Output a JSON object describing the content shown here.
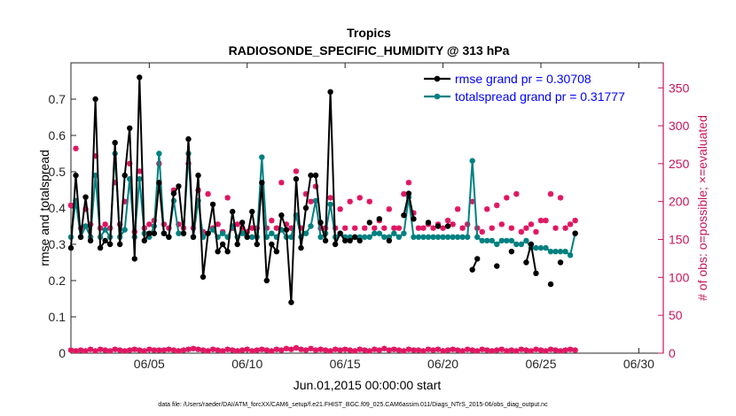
{
  "chart_data": {
    "type": "line",
    "title": "Tropics",
    "subtitle": "RADIOSONDE_SPECIFIC_HUMIDITY @ 313 hPa",
    "xlabel": "Jun.01,2015 00:00:00 start",
    "ylabel": "rmse and totalspread",
    "y2label": "# of obs: o=possible; ×=evaluated",
    "footnote": "data file: /Users/raeder/DAI/ATM_forcXX/CAM6_setup/f.e21.FHIST_BGC.f09_025.CAM6assim.011/Diags_NTrS_2015-06/obs_diag_output.nc",
    "xlim": [
      1,
      31.25
    ],
    "ylim": [
      0,
      0.8
    ],
    "y2lim": [
      0,
      383
    ],
    "x_ticks": [
      5,
      10,
      15,
      20,
      25,
      30
    ],
    "x_tick_labels": [
      "06/05",
      "06/10",
      "06/15",
      "06/20",
      "06/25",
      "06/30"
    ],
    "y_ticks": [
      "0",
      "0.1",
      "0.2",
      "0.3",
      "0.4",
      "0.5",
      "0.6",
      "0.7"
    ],
    "y2_ticks": [
      "0",
      "50",
      "100",
      "150",
      "200",
      "250",
      "300",
      "350"
    ],
    "x_step": 0.25,
    "colors": {
      "rmse": "#000000",
      "spread": "#008080",
      "obs": "#e0115f",
      "legend_text": "#0000ff",
      "right_axis": "#c8155a"
    },
    "series": [
      {
        "name": "rmse grand pr = 0.30708",
        "x_start": 1,
        "values": [
          0.29,
          0.49,
          0.32,
          0.43,
          0.31,
          0.7,
          0.29,
          0.31,
          0.3,
          0.58,
          0.3,
          0.49,
          0.62,
          0.26,
          0.76,
          0.31,
          0.33,
          0.33,
          0.47,
          0.33,
          0.32,
          0.44,
          0.46,
          0.33,
          0.59,
          0.32,
          0.49,
          0.21,
          0.33,
          0.41,
          0.28,
          0.3,
          0.28,
          0.39,
          0.3,
          0.36,
          0.32,
          0.39,
          0.3,
          0.47,
          0.2,
          0.3,
          0.28,
          0.38,
          0.34,
          0.14,
          0.48,
          0.29,
          0.4,
          0.49,
          0.49,
          0.36,
          0.31,
          0.72,
          0.3,
          0.33,
          0.31,
          0.31,
          0.32,
          0.31,
          null,
          0.36,
          null,
          0.37,
          null,
          0.31,
          null,
          null,
          0.38,
          0.44,
          0.37,
          null,
          null,
          0.36,
          null,
          0.35,
          null,
          0.35,
          null,
          null,
          null,
          null,
          0.23,
          0.26,
          null,
          null,
          null,
          0.24,
          null,
          null,
          0.28,
          null,
          null,
          0.25,
          0.3,
          0.22,
          null,
          null,
          0.19,
          null,
          0.25,
          null,
          null,
          0.33
        ]
      },
      {
        "name": "totalspread grand pr = 0.31777",
        "x_start": 1,
        "values": [
          0.32,
          0.42,
          0.32,
          0.35,
          0.32,
          0.49,
          0.32,
          0.34,
          0.32,
          0.55,
          0.32,
          0.34,
          0.48,
          0.32,
          0.48,
          0.33,
          0.32,
          0.35,
          0.55,
          0.33,
          0.32,
          0.42,
          0.33,
          0.33,
          0.55,
          0.32,
          0.42,
          0.32,
          0.33,
          0.34,
          0.32,
          0.33,
          0.32,
          0.35,
          0.32,
          0.33,
          0.32,
          0.32,
          0.32,
          0.54,
          0.32,
          0.33,
          0.32,
          0.34,
          0.32,
          0.32,
          0.38,
          0.32,
          0.33,
          0.35,
          0.42,
          0.32,
          0.33,
          0.41,
          0.32,
          0.33,
          0.32,
          0.32,
          0.32,
          0.32,
          0.32,
          0.32,
          0.33,
          0.33,
          0.32,
          0.32,
          0.33,
          0.32,
          0.33,
          0.43,
          0.32,
          0.32,
          0.32,
          0.32,
          0.32,
          0.32,
          0.32,
          0.32,
          0.32,
          0.32,
          0.32,
          0.32,
          0.53,
          0.32,
          0.31,
          0.31,
          0.31,
          0.3,
          0.31,
          0.31,
          0.31,
          0.3,
          0.3,
          0.31,
          0.29,
          0.29,
          0.29,
          0.29,
          0.28,
          0.28,
          0.28,
          0.28,
          0.27,
          0.33
        ]
      }
    ],
    "obs_possible": {
      "name": "# of obs possible (o)",
      "x_start": 1,
      "values": [
        195,
        270,
        165,
        190,
        170,
        260,
        165,
        170,
        165,
        225,
        170,
        200,
        250,
        160,
        240,
        165,
        170,
        175,
        250,
        170,
        165,
        215,
        170,
        165,
        250,
        165,
        215,
        160,
        210,
        165,
        170,
        160,
        205,
        165,
        170,
        165,
        160,
        165,
        165,
        210,
        165,
        175,
        165,
        225,
        170,
        165,
        240,
        165,
        210,
        200,
        220,
        165,
        165,
        205,
        165,
        190,
        165,
        200,
        165,
        205,
        165,
        200,
        165,
        175,
        165,
        190,
        165,
        165,
        210,
        225,
        185,
        165,
        165,
        170,
        165,
        170,
        165,
        175,
        170,
        190,
        165,
        170,
        200,
        165,
        160,
        190,
        165,
        195,
        170,
        205,
        165,
        210,
        160,
        165,
        170,
        160,
        175,
        175,
        210,
        165,
        205,
        165,
        170,
        175
      ]
    },
    "obs_evaluated": {
      "name": "# of obs evaluated (×)",
      "x_start": 1,
      "values": [
        4,
        3,
        4,
        3,
        5,
        3,
        5,
        4,
        3,
        5,
        4,
        3,
        4,
        5,
        4,
        3,
        5,
        4,
        4,
        4,
        5,
        4,
        3,
        4,
        5,
        6,
        5,
        4,
        3,
        5,
        4,
        3,
        5,
        4,
        3,
        4,
        5,
        3,
        4,
        5,
        4,
        3,
        5,
        4,
        6,
        5,
        7,
        5,
        4,
        6,
        4,
        5,
        4,
        3,
        5,
        4,
        5,
        4,
        3,
        5,
        4,
        3,
        5,
        4,
        6,
        4,
        5,
        4,
        3,
        5,
        4,
        4,
        3,
        5,
        4,
        5,
        3,
        4,
        5,
        4,
        3,
        5,
        4,
        3,
        5,
        4,
        3,
        4,
        5,
        3,
        4,
        3,
        5,
        4,
        3,
        5,
        4,
        3,
        5,
        4,
        3,
        4,
        5,
        4
      ]
    }
  }
}
